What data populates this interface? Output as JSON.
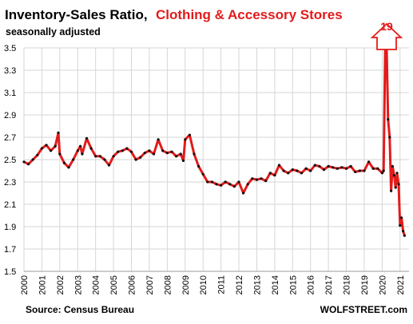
{
  "chart_data": {
    "type": "line",
    "title_part1": "Inventory-Sales  Ratio,",
    "title_part2": "Clothing & Accessory Stores",
    "subtitle": "seasonally adjusted",
    "source": "Source: Census Bureau",
    "credit": "WOLFSTREET.com",
    "spike_label": "19",
    "ylim": [
      1.5,
      3.5
    ],
    "yticks": [
      "3.5",
      "3.3",
      "3.1",
      "2.9",
      "2.7",
      "2.5",
      "2.3",
      "2.1",
      "1.9",
      "1.7",
      "1.5"
    ],
    "xlim": [
      2000,
      2021.5
    ],
    "xticks": [
      "2000",
      "2001",
      "2002",
      "2003",
      "2004",
      "2005",
      "2006",
      "2007",
      "2008",
      "2009",
      "2010",
      "2011",
      "2012",
      "2013",
      "2014",
      "2015",
      "2016",
      "2017",
      "2018",
      "2019",
      "2020",
      "2021"
    ],
    "grid": true,
    "colors": {
      "line": "#e31b1b",
      "markers": "#111111",
      "title_accent": "#e31b1b",
      "grid": "#d6d6d6"
    },
    "series": [
      {
        "x": [
          2000.0,
          2000.25,
          2000.5,
          2000.75,
          2001.0,
          2001.25,
          2001.5,
          2001.75,
          2001.92,
          2002.0,
          2002.25,
          2002.5,
          2002.75,
          2003.0,
          2003.15,
          2003.25,
          2003.5,
          2003.75,
          2004.0,
          2004.25,
          2004.5,
          2004.75,
          2005.0,
          2005.25,
          2005.5,
          2005.75,
          2006.0,
          2006.25,
          2006.5,
          2006.75,
          2007.0,
          2007.25,
          2007.5,
          2007.75,
          2008.0,
          2008.25,
          2008.5,
          2008.75,
          2008.9,
          2009.0,
          2009.25,
          2009.5,
          2009.75,
          2010.0,
          2010.25,
          2010.5,
          2010.75,
          2011.0,
          2011.25,
          2011.5,
          2011.75,
          2012.0,
          2012.25,
          2012.5,
          2012.75,
          2013.0,
          2013.25,
          2013.5,
          2013.75,
          2014.0,
          2014.25,
          2014.5,
          2014.75,
          2015.0,
          2015.25,
          2015.5,
          2015.75,
          2016.0,
          2016.25,
          2016.5,
          2016.75,
          2017.0,
          2017.25,
          2017.5,
          2017.75,
          2018.0,
          2018.25,
          2018.5,
          2018.75,
          2019.0,
          2019.25,
          2019.5,
          2019.75,
          2020.0,
          2020.08,
          2020.17,
          2020.25,
          2020.33,
          2020.42,
          2020.5,
          2020.58,
          2020.67,
          2020.75,
          2020.83,
          2020.92,
          2021.0,
          2021.08,
          2021.17,
          2021.25
        ],
        "y": [
          2.48,
          2.46,
          2.5,
          2.54,
          2.6,
          2.63,
          2.58,
          2.62,
          2.74,
          2.55,
          2.47,
          2.43,
          2.5,
          2.58,
          2.62,
          2.55,
          2.69,
          2.6,
          2.53,
          2.53,
          2.5,
          2.45,
          2.53,
          2.57,
          2.58,
          2.6,
          2.57,
          2.5,
          2.52,
          2.56,
          2.58,
          2.55,
          2.68,
          2.58,
          2.56,
          2.57,
          2.53,
          2.55,
          2.49,
          2.68,
          2.72,
          2.55,
          2.44,
          2.37,
          2.3,
          2.3,
          2.28,
          2.27,
          2.3,
          2.28,
          2.26,
          2.3,
          2.2,
          2.28,
          2.33,
          2.32,
          2.33,
          2.31,
          2.38,
          2.36,
          2.45,
          2.4,
          2.38,
          2.41,
          2.4,
          2.38,
          2.42,
          2.4,
          2.45,
          2.44,
          2.41,
          2.44,
          2.43,
          2.42,
          2.43,
          2.42,
          2.44,
          2.39,
          2.4,
          2.4,
          2.48,
          2.42,
          2.42,
          2.38,
          2.4,
          3.5,
          3.5,
          2.86,
          2.7,
          2.22,
          2.44,
          2.36,
          2.25,
          2.38,
          2.28,
          1.91,
          1.98,
          1.86,
          1.82
        ]
      }
    ]
  }
}
